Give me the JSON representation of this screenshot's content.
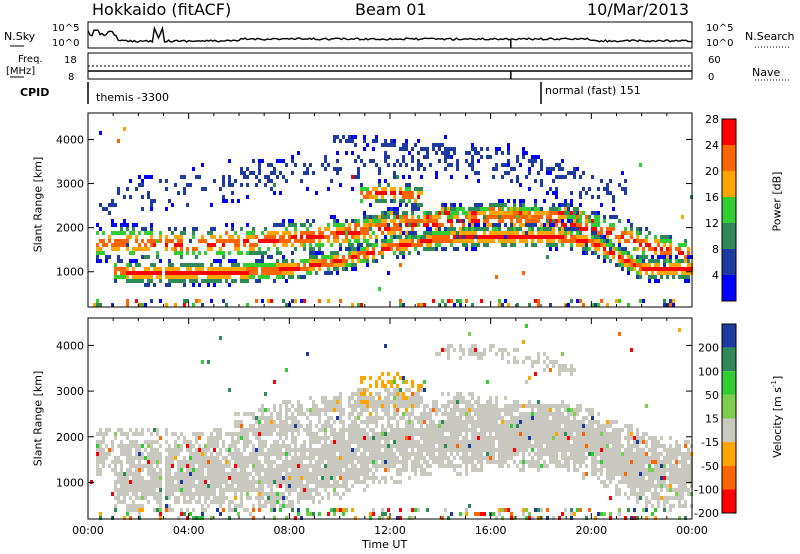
{
  "header": {
    "title": "Hokkaido (fitACF)",
    "beam": "Beam 01",
    "date": "10/Mar/2013"
  },
  "top_panels": {
    "nsky_label": "N.Sky",
    "nsearch_label": "N.Search",
    "freq_label": "Freq.",
    "freq_unit": "[MHz]",
    "nave_label": "Nave",
    "cpid_label": "CPID",
    "left_ticks_noise": [
      "10^5",
      "10^0"
    ],
    "right_ticks_noise": [
      "10^5",
      "10^0"
    ],
    "left_ticks_freq": [
      "18",
      "8"
    ],
    "right_ticks_nave": [
      "60",
      "0"
    ],
    "cpid_segments": [
      {
        "start_h": 0,
        "end_h": 18,
        "text": "themis -3300"
      },
      {
        "start_h": 18,
        "end_h": 24,
        "text": "normal (fast) 151"
      }
    ]
  },
  "chart_data": [
    {
      "type": "heatmap",
      "name": "power",
      "ylabel": "Slant Range [km]",
      "xlim_hours": [
        0,
        24
      ],
      "ylim": [
        200,
        4600
      ],
      "yticks": [
        "1000",
        "2000",
        "3000",
        "4000"
      ],
      "colorbar": {
        "label": "Power [dB]",
        "ticks": [
          "4",
          "8",
          "12",
          "16",
          "20",
          "24",
          "28"
        ],
        "colors": [
          "#0000ff",
          "#1e3ca0",
          "#2e8b57",
          "#32cd32",
          "#ffa500",
          "#ff6600",
          "#ff0000"
        ]
      },
      "bands": [
        {
          "h": [
            1.3,
            2,
            4,
            6,
            8,
            10,
            12,
            14,
            16,
            18,
            19,
            20,
            21,
            22,
            24
          ],
          "r": [
            1050,
            1000,
            1000,
            1030,
            1100,
            1300,
            1600,
            1800,
            1850,
            1850,
            1800,
            1700,
            1400,
            1100,
            1100
          ],
          "w": 280,
          "dense": 0.95,
          "col": "#ff2a00"
        },
        {
          "h": [
            0.6,
            2,
            4,
            6,
            8,
            10,
            12,
            14,
            16,
            18,
            19,
            20,
            21,
            22,
            24
          ],
          "r": [
            1700,
            1700,
            1650,
            1700,
            1800,
            1900,
            2050,
            2150,
            2250,
            2250,
            2100,
            2000,
            1900,
            1650,
            1400
          ],
          "w": 420,
          "dense": 0.65,
          "col": "#228b22"
        },
        {
          "h": [
            10,
            11,
            12,
            13,
            14,
            15,
            16,
            17,
            18,
            19,
            20
          ],
          "r": [
            2000,
            2100,
            2300,
            2200,
            2400,
            2350,
            2450,
            2400,
            2300,
            2400,
            2200
          ],
          "w": 200,
          "dense": 0.85,
          "col": "#ff8000"
        },
        {
          "h": [
            11,
            12,
            13
          ],
          "r": [
            2800,
            2850,
            2750
          ],
          "w": 260,
          "dense": 0.85,
          "col": "#ff3300"
        },
        {
          "h": [
            0.6,
            3,
            6,
            9,
            12,
            14,
            17,
            19,
            21
          ],
          "r": [
            2500,
            2900,
            3100,
            3300,
            3500,
            3700,
            3400,
            3100,
            2800
          ],
          "w": 500,
          "dense": 0.25,
          "col": "#2244cc"
        },
        {
          "h": [
            10,
            12,
            14,
            16,
            18,
            19
          ],
          "r": [
            4000,
            3900,
            3800,
            3700,
            3500,
            3300
          ],
          "w": 180,
          "dense": 0.3,
          "col": "#2244cc"
        }
      ]
    },
    {
      "type": "heatmap",
      "name": "velocity",
      "ylabel": "Slant Range [km]",
      "xlim_hours": [
        0,
        24
      ],
      "ylim": [
        200,
        4600
      ],
      "yticks": [
        "1000",
        "2000",
        "3000",
        "4000"
      ],
      "colorbar": {
        "label": "Velocity [m s^-1]",
        "ticks": [
          "200",
          "100",
          "50",
          "15",
          "-15",
          "-50",
          "-100",
          "-200"
        ],
        "colors": [
          "#1e3ca0",
          "#2e8b57",
          "#32cd32",
          "#7ccd50",
          "#c8c8c0",
          "#ffa500",
          "#ff6600",
          "#ff0000"
        ]
      },
      "bands": [
        {
          "h": [
            1.3,
            2,
            4,
            6,
            8,
            10,
            12,
            14,
            16,
            18,
            19,
            20,
            21,
            22,
            24
          ],
          "r": [
            1050,
            1000,
            1000,
            1030,
            1100,
            1300,
            1600,
            1800,
            1850,
            1850,
            1800,
            1700,
            1400,
            1100,
            1100
          ],
          "w": 600,
          "dense": 0.97,
          "col": "#c8c8c0"
        },
        {
          "h": [
            0.6,
            2,
            4,
            6,
            8,
            10,
            12,
            14,
            16,
            18,
            19,
            20,
            21,
            22,
            24
          ],
          "r": [
            1700,
            1700,
            1650,
            1700,
            1800,
            1900,
            2050,
            2150,
            2250,
            2250,
            2100,
            2000,
            1900,
            1650,
            1400
          ],
          "w": 520,
          "dense": 0.85,
          "col": "#c8c8c0"
        },
        {
          "h": [
            6,
            8,
            10,
            12,
            14,
            16,
            18,
            19,
            20
          ],
          "r": [
            2300,
            2500,
            2700,
            2800,
            2700,
            2600,
            2500,
            2450,
            2350
          ],
          "w": 350,
          "dense": 0.8,
          "col": "#c8c8c0"
        },
        {
          "h": [
            11,
            12,
            13
          ],
          "r": [
            2950,
            3100,
            2950
          ],
          "w": 400,
          "dense": 0.5,
          "col": "#ffa500"
        },
        {
          "h": [
            14,
            16,
            18,
            19
          ],
          "r": [
            3900,
            3900,
            3700,
            3500
          ],
          "w": 180,
          "dense": 0.6,
          "col": "#c8c8c0"
        },
        {
          "h": [
            19,
            20,
            21,
            22,
            23,
            24
          ],
          "r": [
            2400,
            2200,
            1700,
            1300,
            1100,
            1000
          ],
          "w": 300,
          "dense": 0.3,
          "col": "#7ccd50"
        }
      ]
    }
  ],
  "xaxis": {
    "label": "Time UT",
    "ticks": [
      "00:00",
      "04:00",
      "08:00",
      "12:00",
      "16:00",
      "20:00",
      "00:00"
    ]
  }
}
